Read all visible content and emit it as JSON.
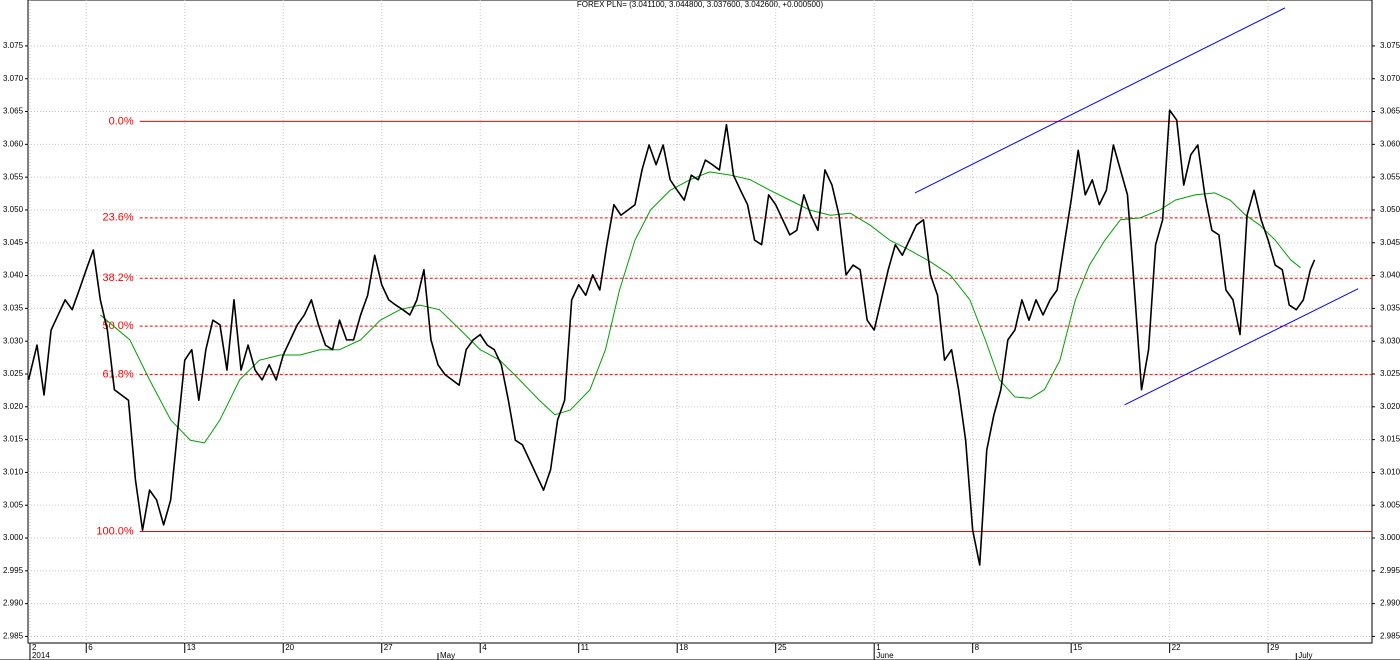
{
  "chart_data": {
    "type": "line",
    "title": "FOREX PLN= (3.041100, 3.044800, 3.037600, 3.042600, +0.000500)",
    "xlim": [
      1.86,
      97.38
    ],
    "ylim": [
      2.984,
      3.082
    ],
    "grid": true,
    "yticks": [
      2.985,
      {
        "value": 2.99,
        "label": "2.990"
      },
      2.995,
      {
        "value": 3,
        "label": "3.000"
      },
      3.005,
      {
        "value": 3.01,
        "label": "3.010"
      },
      3.015,
      {
        "value": 3.02,
        "label": "3.020"
      },
      3.025,
      {
        "value": 3.03,
        "label": "3.030"
      },
      3.035,
      {
        "value": 3.04,
        "label": "3.040"
      },
      3.045,
      {
        "value": 3.05,
        "label": "3.050"
      },
      3.055,
      {
        "value": 3.06,
        "label": "3.060"
      },
      3.065,
      {
        "value": 3.07,
        "label": "3.070"
      },
      3.075
    ],
    "xticks": [
      2,
      6,
      13,
      20,
      27,
      {
        "value": 34,
        "label": "4"
      },
      {
        "value": 41,
        "label": "11"
      },
      {
        "value": 48,
        "label": "18"
      },
      {
        "value": 55,
        "label": "25"
      },
      {
        "value": 62,
        "label": "1"
      },
      {
        "value": 69,
        "label": "8"
      },
      {
        "value": 76,
        "label": "15"
      },
      {
        "value": 83,
        "label": "22"
      },
      {
        "value": 90,
        "label": "29"
      }
    ],
    "month_ticks": [
      {
        "value": 2,
        "label": "2014"
      },
      {
        "value": 31,
        "label": "May"
      },
      {
        "value": 62,
        "label": "June"
      },
      {
        "value": 92,
        "label": "July"
      }
    ],
    "series": [
      {
        "color": "#000000",
        "x": [
          1.9,
          2.5,
          3,
          3.5,
          4,
          4.5,
          5,
          5.5,
          6,
          6.5,
          7,
          7.5,
          8,
          8.5,
          9,
          9.5,
          10,
          10.5,
          11,
          11.5,
          12,
          12.5,
          13,
          13.5,
          14,
          14.5,
          15,
          15.5,
          16,
          16.5,
          17,
          17.5,
          18,
          18.5,
          19,
          19.5,
          20,
          20.5,
          21,
          21.5,
          22,
          22.5,
          23,
          23.5,
          24,
          24.5,
          25,
          25.5,
          26,
          26.5,
          27,
          27.5,
          28,
          28.5,
          29,
          29.5,
          30,
          30.5,
          31,
          31.5,
          32,
          32.5,
          33,
          33.5,
          34,
          34.5,
          35,
          35.5,
          36,
          36.5,
          37,
          37.5,
          38,
          38.5,
          39,
          39.5,
          40,
          40.5,
          41,
          41.5,
          42,
          42.5,
          43,
          43.5,
          44,
          44.5,
          45,
          45.5,
          46,
          46.5,
          47,
          47.5,
          48,
          48.5,
          49,
          49.5,
          50,
          50.5,
          51,
          51.5,
          52,
          52.5,
          53,
          53.5,
          54,
          54.5,
          55,
          55.5,
          56,
          56.5,
          57,
          57.5,
          58,
          58.5,
          59,
          59.5,
          60,
          60.5,
          61,
          61.5,
          62,
          62.5,
          63,
          63.5,
          64,
          64.5,
          65,
          65.5,
          66,
          66.5,
          67,
          67.5,
          68,
          68.5,
          69,
          69.5,
          70,
          70.5,
          71,
          71.5,
          72,
          72.5,
          73,
          73.5,
          74,
          74.5,
          75,
          75.5,
          76,
          76.5,
          77,
          77.5,
          78,
          78.5,
          79,
          79.5,
          80,
          80.5,
          81,
          81.5,
          82,
          82.5,
          83,
          83.5,
          84,
          84.5,
          85,
          85.5,
          86,
          86.5,
          87,
          87.5,
          88,
          88.5,
          89,
          89.5,
          90,
          90.5,
          91,
          91.5,
          92,
          92.5,
          93,
          93.3
        ],
        "values": [
          3.0241,
          3.0294,
          3.0218,
          3.0317,
          3.034,
          3.0363,
          3.0348,
          3.0378,
          3.0409,
          3.0439,
          3.0363,
          3.0317,
          3.0226,
          3.0218,
          3.021,
          3.0088,
          3.0012,
          3.0073,
          3.0058,
          3.002,
          3.0058,
          3.0165,
          3.0271,
          3.0287,
          3.021,
          3.0287,
          3.0332,
          3.0325,
          3.0256,
          3.0363,
          3.0256,
          3.0294,
          3.0256,
          3.0241,
          3.0264,
          3.0241,
          3.0279,
          3.0302,
          3.0325,
          3.034,
          3.0363,
          3.0325,
          3.0294,
          3.0287,
          3.0332,
          3.0302,
          3.0302,
          3.034,
          3.037,
          3.0431,
          3.0386,
          3.0363,
          3.0355,
          3.0348,
          3.034,
          3.0363,
          3.0409,
          3.0302,
          3.0264,
          3.0249,
          3.0241,
          3.0233,
          3.0287,
          3.0302,
          3.031,
          3.0294,
          3.0287,
          3.0264,
          3.021,
          3.0149,
          3.0142,
          3.0119,
          3.0096,
          3.0073,
          3.0104,
          3.018,
          3.021,
          3.0363,
          3.0386,
          3.037,
          3.0401,
          3.0378,
          3.0447,
          3.0508,
          3.0492,
          3.05,
          3.0508,
          3.0561,
          3.0599,
          3.0569,
          3.0599,
          3.0546,
          3.053,
          3.0515,
          3.0553,
          3.0546,
          3.0576,
          3.0569,
          3.0561,
          3.063,
          3.0553,
          3.053,
          3.0508,
          3.0454,
          3.0447,
          3.0523,
          3.0508,
          3.0485,
          3.0462,
          3.0469,
          3.0523,
          3.0492,
          3.0469,
          3.0561,
          3.0538,
          3.0492,
          3.0401,
          3.0416,
          3.0409,
          3.0332,
          3.0317,
          3.0363,
          3.0409,
          3.0447,
          3.0431,
          3.0454,
          3.0477,
          3.0485,
          3.0401,
          3.037,
          3.0271,
          3.0287,
          3.0226,
          3.0149,
          3.0012,
          2.9959,
          3.0134,
          3.0187,
          3.0226,
          3.0302,
          3.0317,
          3.0363,
          3.0332,
          3.0363,
          3.034,
          3.0363,
          3.0378,
          3.0447,
          3.0515,
          3.0591,
          3.0523,
          3.0546,
          3.0508,
          3.053,
          3.0599,
          3.0561,
          3.0523,
          3.0378,
          3.0226,
          3.0287,
          3.0447,
          3.0485,
          3.0652,
          3.0637,
          3.0538,
          3.0584,
          3.0599,
          3.0523,
          3.0469,
          3.0462,
          3.0378,
          3.0363,
          3.031,
          3.0492,
          3.053,
          3.0485,
          3.0454,
          3.0416,
          3.0409,
          3.0355,
          3.0348,
          3.0363,
          3.0409,
          3.0424
        ]
      },
      {
        "color": "#00a000",
        "x": [
          7,
          9.1,
          10.5,
          12,
          13.4,
          14.4,
          15.5,
          16.9,
          18.3,
          19.8,
          21.2,
          22.6,
          24,
          25.5,
          26.9,
          28.3,
          29.7,
          31.1,
          32.6,
          34,
          35.4,
          36.8,
          38.2,
          39.3,
          40.4,
          41.8,
          42.9,
          43.9,
          45,
          46.1,
          47.5,
          48.9,
          50.3,
          51.8,
          53.2,
          54.6,
          56,
          57.4,
          58.9,
          60.3,
          61.7,
          63.1,
          64.5,
          66,
          67.4,
          68.8,
          69.9,
          70.9,
          72,
          73.1,
          74.1,
          75.2,
          76.3,
          77.3,
          78.4,
          79.5,
          80.9,
          82.3,
          83.4,
          84.8,
          86.2,
          87.3,
          88.4,
          89.4,
          90.5,
          91.6,
          92.3
        ],
        "values": [
          3.034,
          3.0302,
          3.0241,
          3.018,
          3.0149,
          3.0145,
          3.018,
          3.0241,
          3.0271,
          3.0279,
          3.0279,
          3.0287,
          3.0287,
          3.0302,
          3.0332,
          3.0348,
          3.0355,
          3.0348,
          3.0317,
          3.0287,
          3.0271,
          3.0241,
          3.021,
          3.0188,
          3.0195,
          3.0226,
          3.0287,
          3.0378,
          3.0454,
          3.05,
          3.053,
          3.0546,
          3.0558,
          3.0553,
          3.0546,
          3.053,
          3.0515,
          3.05,
          3.0492,
          3.0495,
          3.0477,
          3.0454,
          3.0439,
          3.0421,
          3.0401,
          3.0363,
          3.0302,
          3.0241,
          3.0215,
          3.0213,
          3.0226,
          3.0271,
          3.0363,
          3.0416,
          3.0454,
          3.0485,
          3.0488,
          3.05,
          3.0515,
          3.0523,
          3.0526,
          3.0515,
          3.0492,
          3.0477,
          3.0454,
          3.0424,
          3.0412
        ]
      }
    ],
    "trend_lines": [
      {
        "color": "#0000ff",
        "x": [
          64.9,
          91.2
        ],
        "values": [
          3.0526,
          3.0808
        ]
      },
      {
        "color": "#0000ff",
        "x": [
          79.8,
          96.4
        ],
        "values": [
          3.0203,
          3.038
        ]
      }
    ],
    "fib_color": "#ff0000",
    "fib_levels": [
      {
        "label": "0.0%",
        "value": 3.0635,
        "x_start": 9.8,
        "dashed": false
      },
      {
        "label": "23.6%",
        "value": 3.0488,
        "x_start": 9.8,
        "dashed": true
      },
      {
        "label": "38.2%",
        "value": 3.0396,
        "x_start": 9.8,
        "dashed": true
      },
      {
        "label": "50.0%",
        "value": 3.0323,
        "x_start": 9.8,
        "dashed": true
      },
      {
        "label": "61.8%",
        "value": 3.0249,
        "x_start": 9.8,
        "dashed": true
      },
      {
        "label": "100.0%",
        "value": 3.001,
        "x_start": 9.8,
        "dashed": false
      }
    ]
  }
}
